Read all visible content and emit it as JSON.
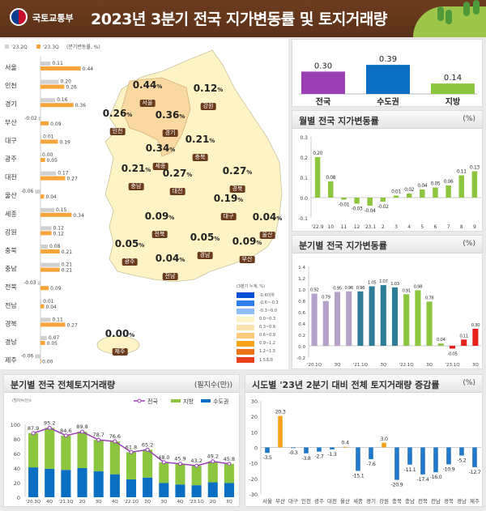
{
  "header": {
    "ministry": "국토교통부",
    "title": "2023년 3분기 전국 지가변동률 및 토지거래량"
  },
  "colors": {
    "prev_q": "#d0d0d0",
    "curr_q": "#f7a43a",
    "nation": "#9b3fb5",
    "capital": "#0a6fc2",
    "local": "#8cc63f",
    "positive": "#f7a21b",
    "negative": "#1f78c8"
  },
  "regional_change": {
    "legend": {
      "prev": "'23.2Q",
      "curr": "'23.3Q",
      "unit": "(분기변동률, %)"
    },
    "regions": [
      "서울",
      "인천",
      "경기",
      "부산",
      "대구",
      "광주",
      "대전",
      "울산",
      "세종",
      "강원",
      "충북",
      "충남",
      "전북",
      "전남",
      "경북",
      "경남",
      "제주"
    ],
    "prev": [
      0.11,
      0.2,
      0.16,
      -0.02,
      0.01,
      0.0,
      0.17,
      -0.06,
      0.15,
      0.12,
      0.08,
      0.21,
      -0.03,
      0.01,
      0.11,
      0.07,
      -0.06
    ],
    "curr": [
      0.44,
      0.26,
      0.36,
      0.09,
      0.19,
      0.05,
      0.27,
      0.04,
      0.34,
      0.12,
      0.21,
      0.21,
      0.09,
      0.04,
      0.27,
      0.05,
      0.0
    ]
  },
  "map": {
    "unit_symbol": "%",
    "labels": [
      {
        "region": "서울",
        "value": "0.44"
      },
      {
        "region": "강원",
        "value": "0.12"
      },
      {
        "region": "인천",
        "value": "0.26"
      },
      {
        "region": "경기",
        "value": "0.36"
      },
      {
        "region": "충북",
        "value": "0.21"
      },
      {
        "region": "세종",
        "value": "0.34"
      },
      {
        "region": "충남",
        "value": "0.21"
      },
      {
        "region": "대전",
        "value": "0.27"
      },
      {
        "region": "경북",
        "value": "0.27"
      },
      {
        "region": "대구",
        "value": "0.19"
      },
      {
        "region": "전북",
        "value": "0.09"
      },
      {
        "region": "울산",
        "value": "0.04"
      },
      {
        "region": "경남",
        "value": "0.05"
      },
      {
        "region": "부산",
        "value": "0.09"
      },
      {
        "region": "광주",
        "value": "0.05"
      },
      {
        "region": "전남",
        "value": "0.04"
      },
      {
        "region": "제주",
        "value": "0.00"
      }
    ],
    "legend_title": "(3분기 누계, %)",
    "legend": [
      {
        "label": "-0.6이하",
        "color": "#0b4fd6"
      },
      {
        "label": "-0.6~-0.3",
        "color": "#2f7ff0"
      },
      {
        "label": "-0.3~0.0",
        "color": "#8fbdf7"
      },
      {
        "label": "0.0~0.3",
        "color": "#fdf5c9"
      },
      {
        "label": "0.3~0.6",
        "color": "#fbe2ae"
      },
      {
        "label": "0.6~0.9",
        "color": "#fcca7a"
      },
      {
        "label": "0.9~1.2",
        "color": "#f9a31b"
      },
      {
        "label": "1.2~1.5",
        "color": "#ef7212"
      },
      {
        "label": "1.5초과",
        "color": "#e8401c"
      }
    ]
  },
  "chart_data": [
    {
      "type": "bar",
      "title": "",
      "categories": [
        "전국",
        "수도권",
        "지방"
      ],
      "values": [
        0.3,
        0.39,
        0.14
      ]
    },
    {
      "type": "bar",
      "title": "월별 전국 지가변동률",
      "unit": "(%)",
      "categories": [
        "'22.9",
        "10",
        "11",
        "12",
        "'23.1",
        "2",
        "3",
        "4",
        "5",
        "6",
        "7",
        "8",
        "9"
      ],
      "values": [
        0.2,
        0.08,
        -0.01,
        -0.03,
        -0.04,
        -0.02,
        0.01,
        0.02,
        0.04,
        0.05,
        0.06,
        0.11,
        0.13
      ],
      "ylim": [
        -0.1,
        0.3
      ],
      "yticks": [
        "0.3",
        "0.2",
        "0.1",
        "0.0",
        "-0.1"
      ]
    },
    {
      "type": "bar",
      "title": "분기별 전국 지가변동률",
      "unit": "(%)",
      "categories": [
        "'20.1Q",
        "2Q",
        "3Q",
        "4Q",
        "'21.1Q",
        "2Q",
        "3Q",
        "4Q",
        "'22.1Q",
        "2Q",
        "3Q",
        "4Q",
        "'23.1Q",
        "2Q",
        "3Q"
      ],
      "shown_ticks": [
        "'20.1Q",
        "",
        "3Q",
        "",
        "'21.1Q",
        "",
        "3Q",
        "",
        "'22.1Q",
        "",
        "3Q",
        "",
        "'23.1Q",
        "",
        "3Q"
      ],
      "values": [
        0.92,
        0.79,
        0.95,
        0.96,
        0.96,
        1.05,
        1.07,
        1.03,
        0.91,
        0.98,
        0.78,
        0.04,
        -0.05,
        0.11,
        0.3
      ],
      "bar_colors": [
        "#b4a0c8",
        "#b4a0c8",
        "#b4a0c8",
        "#b4a0c8",
        "#2e7d96",
        "#2e7d96",
        "#2e7d96",
        "#2e7d96",
        "#8cc63f",
        "#8cc63f",
        "#8cc63f",
        "#8cc63f",
        "#e8201c",
        "#e8201c",
        "#e8201c"
      ],
      "ylim": [
        -0.2,
        1.4
      ],
      "yticks": [
        "1.4",
        "1.2",
        "1.0",
        "0.8",
        "0.6",
        "0.4",
        "0.2",
        "0.0",
        "-0.2"
      ]
    },
    {
      "type": "bar",
      "stacked": true,
      "title": "분기별 전국 전체토지거래량",
      "unit": "(필지수(만))",
      "axis_unit": "(필지수(만))",
      "categories": [
        "'20.3Q",
        "4Q",
        "'21.1Q",
        "2Q",
        "3Q",
        "4Q",
        "'22.1Q",
        "2Q",
        "3Q",
        "4Q",
        "'23.1Q",
        "2Q",
        "3Q"
      ],
      "series": [
        {
          "name": "전국",
          "kind": "line",
          "values": [
            87.9,
            95.2,
            84.6,
            89.8,
            78.7,
            76.6,
            61.8,
            65.2,
            48.0,
            45.9,
            43.2,
            49.2,
            45.8
          ]
        },
        {
          "name": "지방",
          "values": [
            46.9,
            56.2,
            47.1,
            49.8,
            43.2,
            45.1,
            37.3,
            38.2,
            28.5,
            28.4,
            26.7,
            28.7,
            26.3
          ]
        },
        {
          "name": "수도권",
          "values": [
            41.0,
            39.0,
            37.5,
            40.0,
            35.5,
            31.5,
            24.5,
            27.0,
            19.5,
            17.5,
            16.5,
            20.5,
            19.5
          ]
        }
      ],
      "ylim": [
        0,
        100
      ],
      "yticks": [
        "100",
        "80",
        "60",
        "40",
        "20",
        "0"
      ],
      "legend": "top-right"
    },
    {
      "type": "bar",
      "title": "시도별 '23년 2분기 대비 전체 토지거래량 증감률",
      "unit": "(%)",
      "categories": [
        "서울",
        "부산",
        "대구",
        "인천",
        "광주",
        "대전",
        "울산",
        "세종",
        "경기",
        "강원",
        "충북",
        "충남",
        "전북",
        "전남",
        "경북",
        "경남",
        "제주"
      ],
      "values": [
        -3.5,
        20.3,
        -0.3,
        -3.8,
        -2.7,
        -1.3,
        0.4,
        -15.1,
        -7.6,
        3.0,
        -20.9,
        -11.1,
        -17.4,
        -16.0,
        -10.9,
        -5.2,
        -12.7
      ],
      "ylim": [
        -30,
        30
      ],
      "yticks": [
        "30",
        "20",
        "10",
        "0",
        "-10",
        "-20",
        "-30"
      ]
    }
  ]
}
